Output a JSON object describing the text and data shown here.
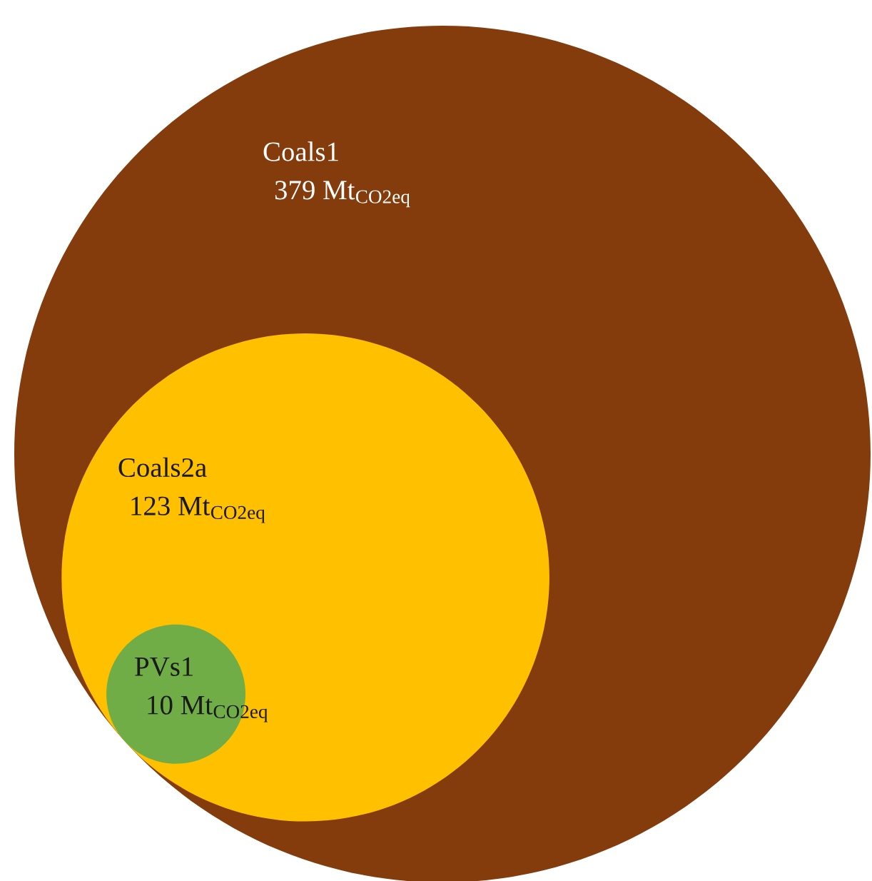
{
  "chart_data": {
    "type": "other",
    "categories": [
      "Coals1",
      "Coals2a",
      "PVs1"
    ],
    "values": [
      379,
      123,
      10
    ],
    "colors": [
      "#843c0c",
      "#ffc000",
      "#70ad47"
    ],
    "value_labels": [
      "379 Mt$_{CO2eq}$",
      "123 Mt$_{CO2eq}$",
      "10 Mt$_{CO2eq}$"
    ]
  }
}
